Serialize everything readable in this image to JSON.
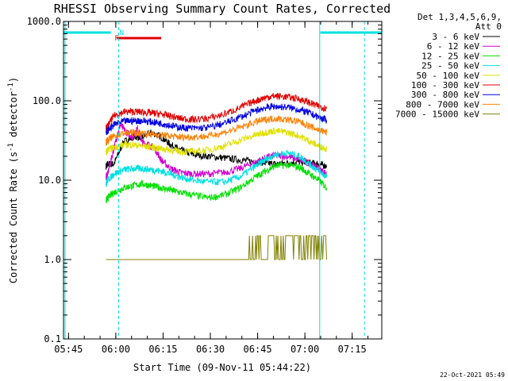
{
  "chart_data": {
    "type": "line",
    "title": "RHESSI Observing Summary Count Rates, Corrected",
    "xlabel": "Start Time (09-Nov-11 05:44:22)",
    "ylabel_parts": [
      "Corrected Count Rate (s",
      "-1",
      " detector",
      "-1",
      ")"
    ],
    "xlim_minutes": [
      -1,
      100
    ],
    "ylim": [
      0.1,
      1000
    ],
    "yscale": "log",
    "x_ticks": [
      {
        "min": 0.6,
        "label": "05:45"
      },
      {
        "min": 15.6,
        "label": "06:00"
      },
      {
        "min": 30.6,
        "label": "06:15"
      },
      {
        "min": 45.6,
        "label": "06:30"
      },
      {
        "min": 60.6,
        "label": "06:45"
      },
      {
        "min": 75.6,
        "label": "07:00"
      },
      {
        "min": 90.6,
        "label": "07:15"
      }
    ],
    "y_ticks": [
      {
        "value": 0.1,
        "label": "0.1"
      },
      {
        "value": 1,
        "label": "1.0"
      },
      {
        "value": 10,
        "label": "10.0"
      },
      {
        "value": 100,
        "label": "100.0"
      },
      {
        "value": 1000,
        "label": "1000.0"
      }
    ],
    "legend_header": [
      "Det 1,3,4,5,6,9,",
      "Att 0"
    ],
    "legend_placement": "right",
    "series": [
      {
        "name": "3 - 6 keV",
        "color": "#000000",
        "x": [
          12.5,
          13,
          15,
          18,
          21,
          24,
          27,
          30,
          33,
          36,
          40,
          45,
          50,
          55,
          60,
          63,
          66,
          70,
          74,
          77,
          80,
          82.5
        ],
        "y": [
          15,
          16,
          16,
          30,
          35,
          35,
          40,
          35,
          28,
          24,
          21,
          20,
          19,
          18,
          17,
          16.5,
          16,
          16.5,
          17,
          16.5,
          16,
          15
        ]
      },
      {
        "name": "6 - 12 keV",
        "color": "#d000d0",
        "x": [
          12.5,
          13,
          15,
          17,
          19,
          21,
          22.5,
          24,
          26,
          28,
          30,
          33,
          36,
          40,
          45,
          50,
          55,
          60,
          63,
          66,
          70,
          74,
          77,
          80,
          82.5
        ],
        "y": [
          11,
          12,
          25,
          50,
          40,
          35,
          45,
          30,
          28,
          25,
          18,
          14,
          12.5,
          12,
          12,
          12.5,
          14,
          17,
          19,
          20.5,
          20,
          18,
          16.5,
          14,
          12
        ]
      },
      {
        "name": "12 - 25 keV",
        "color": "#00e000",
        "x": [
          12.5,
          13,
          15,
          18,
          21,
          24,
          27,
          30,
          33,
          36,
          40,
          45,
          50,
          55,
          60,
          63,
          66,
          70,
          74,
          77,
          80,
          82.5
        ],
        "y": [
          5.5,
          6,
          7,
          8,
          8.5,
          9,
          8.5,
          8,
          7.5,
          7,
          6.5,
          6,
          6.5,
          8,
          11,
          13,
          15,
          15.5,
          14.5,
          12,
          10,
          8
        ]
      },
      {
        "name": "25 - 50 keV",
        "color": "#00e0e0",
        "x": [
          12.5,
          13,
          15,
          18,
          21,
          24,
          27,
          30,
          33,
          36,
          40,
          45,
          50,
          55,
          60,
          63,
          66,
          70,
          74,
          77,
          80,
          82.5
        ],
        "y": [
          9,
          10,
          12,
          13.5,
          14,
          14,
          13.5,
          13,
          12,
          11,
          10,
          9.5,
          9.5,
          11,
          15,
          18,
          21,
          22,
          20,
          16,
          13,
          11
        ]
      },
      {
        "name": "50 - 100 keV",
        "color": "#e0e000",
        "x": [
          12.5,
          13,
          15,
          18,
          21,
          24,
          27,
          30,
          33,
          36,
          40,
          45,
          50,
          55,
          60,
          63,
          66,
          70,
          74,
          77,
          80,
          82.5
        ],
        "y": [
          22,
          24,
          26,
          28,
          28,
          27,
          26,
          25,
          24,
          23,
          23,
          24,
          27,
          32,
          37,
          40,
          42,
          40,
          36,
          31,
          27,
          25
        ]
      },
      {
        "name": "100 - 300 keV",
        "color": "#e00000",
        "x": [
          12.5,
          13,
          15,
          18,
          21,
          24,
          27,
          30,
          33,
          36,
          40,
          45,
          50,
          55,
          60,
          63,
          66,
          70,
          74,
          77,
          80,
          82.5
        ],
        "y": [
          45,
          48,
          65,
          72,
          73,
          72,
          70,
          68,
          64,
          60,
          58,
          60,
          68,
          82,
          100,
          110,
          115,
          112,
          105,
          95,
          85,
          80
        ]
      },
      {
        "name": "300 - 800 keV",
        "color": "#0000e0",
        "x": [
          12.5,
          13,
          15,
          18,
          21,
          24,
          27,
          30,
          33,
          36,
          40,
          45,
          50,
          55,
          60,
          63,
          66,
          70,
          74,
          77,
          80,
          82.5
        ],
        "y": [
          40,
          42,
          50,
          55,
          56,
          56,
          54,
          52,
          49,
          46,
          45,
          46,
          52,
          62,
          75,
          82,
          85,
          83,
          77,
          70,
          62,
          57
        ]
      },
      {
        "name": "800 - 7000 keV",
        "color": "#ff8000",
        "x": [
          12.5,
          13,
          15,
          18,
          21,
          24,
          27,
          30,
          33,
          36,
          40,
          45,
          50,
          55,
          60,
          63,
          66,
          70,
          74,
          77,
          80,
          82.5
        ],
        "y": [
          30,
          32,
          36,
          39,
          40,
          39,
          38,
          37,
          36,
          35,
          35,
          36,
          40,
          46,
          54,
          58,
          60,
          58,
          54,
          48,
          43,
          40
        ]
      },
      {
        "name": "7000 - 15000 keV",
        "color": "#808000",
        "x": [
          12.5,
          18,
          24,
          27,
          30,
          33,
          36,
          40,
          45,
          50,
          54,
          56,
          58,
          60,
          62,
          64,
          66,
          68,
          70,
          72,
          74,
          76,
          78,
          80,
          82.5
        ],
        "y": [
          1,
          1,
          1,
          1,
          1,
          1,
          1,
          1,
          1,
          1,
          1,
          1,
          1,
          2,
          1,
          2,
          2,
          1,
          2,
          2,
          1,
          2,
          1,
          2,
          1
        ]
      }
    ],
    "flags": {
      "saa_color": "#00e0e0",
      "flare_color": "#e00000",
      "saa_label": "N",
      "flare_label": "F",
      "saa_bars": [
        [
          -1,
          14
        ],
        [
          80.5,
          100
        ]
      ],
      "flare_bar": [
        16,
        30
      ],
      "saa_dashed_x": [
        16.5,
        94.5
      ],
      "saa_solid_x": [
        -0.5,
        80.3
      ]
    },
    "grid": false
  },
  "footer": {
    "timestamp": "22-Oct-2021 05:49"
  }
}
